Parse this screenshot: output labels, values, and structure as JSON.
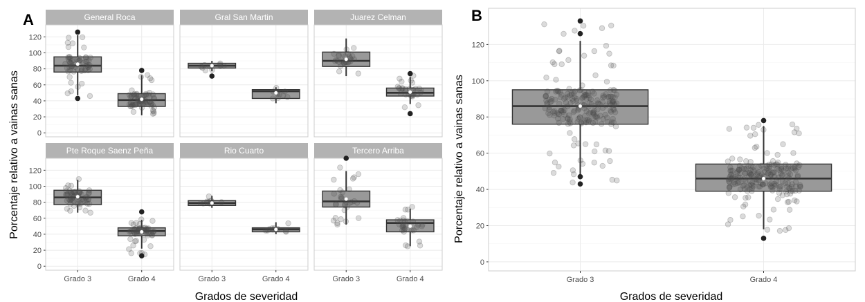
{
  "figure": {
    "colors": {
      "box": "#999999",
      "outline": "#333333",
      "strip": "#b3b3b3",
      "grid": "#ebebeb",
      "point": "#4d4d4d",
      "mean": "#ffffff"
    }
  },
  "chart_data": [
    {
      "type": "box",
      "panel_label": "A",
      "xlabel": "Grados de severidad",
      "ylabel": "Porcentaje relativo a vainas sanas",
      "categories": [
        "Grado 3",
        "Grado 4"
      ],
      "yticks": [
        0,
        20,
        40,
        60,
        80,
        100,
        120
      ],
      "ylim": [
        -5,
        135
      ],
      "grid": true,
      "facets": [
        {
          "name": "General Roca",
          "boxes": [
            {
              "category": "Grado 3",
              "q1": 76,
              "median": 84,
              "q3": 95,
              "whisker_low": 47,
              "whisker_high": 122,
              "mean": 86,
              "outliers": [
                43,
                126
              ],
              "jitter_min": 45,
              "jitter_max": 122,
              "n": 60
            },
            {
              "category": "Grado 4",
              "q1": 33,
              "median": 41,
              "q3": 49,
              "whisker_low": 22,
              "whisker_high": 72,
              "mean": 42,
              "outliers": [
                78
              ],
              "jitter_min": 20,
              "jitter_max": 75,
              "n": 70
            }
          ]
        },
        {
          "name": "Gral San Martin",
          "boxes": [
            {
              "category": "Grado 3",
              "q1": 81,
              "median": 84,
              "q3": 87,
              "whisker_low": 77,
              "whisker_high": 90,
              "mean": 84,
              "outliers": [
                71
              ],
              "jitter_min": 77,
              "jitter_max": 90,
              "n": 10
            },
            {
              "category": "Grado 4",
              "q1": 43,
              "median": 52,
              "q3": 54,
              "whisker_low": 37,
              "whisker_high": 57,
              "mean": 50,
              "outliers": [],
              "jitter_min": 37,
              "jitter_max": 57,
              "n": 10
            }
          ]
        },
        {
          "name": "Juarez Celman",
          "boxes": [
            {
              "category": "Grado 3",
              "q1": 83,
              "median": 90,
              "q3": 101,
              "whisker_low": 71,
              "whisker_high": 118,
              "mean": 92,
              "outliers": [],
              "jitter_min": 70,
              "jitter_max": 118,
              "n": 30
            },
            {
              "category": "Grado 4",
              "q1": 46,
              "median": 50,
              "q3": 56,
              "whisker_low": 36,
              "whisker_high": 70,
              "mean": 51,
              "outliers": [
                74,
                24
              ],
              "jitter_min": 30,
              "jitter_max": 72,
              "n": 30
            }
          ]
        },
        {
          "name": "Pte Roque Saenz Peña",
          "boxes": [
            {
              "category": "Grado 3",
              "q1": 77,
              "median": 86,
              "q3": 95,
              "whisker_low": 67,
              "whisker_high": 108,
              "mean": 87,
              "outliers": [],
              "jitter_min": 66,
              "jitter_max": 110,
              "n": 60
            },
            {
              "category": "Grado 4",
              "q1": 38,
              "median": 44,
              "q3": 48,
              "whisker_low": 22,
              "whisker_high": 58,
              "mean": 43,
              "outliers": [
                68,
                13
              ],
              "jitter_min": 14,
              "jitter_max": 60,
              "n": 60
            }
          ]
        },
        {
          "name": "Rio Cuarto",
          "boxes": [
            {
              "category": "Grado 3",
              "q1": 76,
              "median": 79,
              "q3": 82,
              "whisker_low": 73,
              "whisker_high": 88,
              "mean": 79,
              "outliers": [],
              "jitter_min": 73,
              "jitter_max": 89,
              "n": 10
            },
            {
              "category": "Grado 4",
              "q1": 43,
              "median": 46,
              "q3": 48,
              "whisker_low": 40,
              "whisker_high": 55,
              "mean": 46,
              "outliers": [],
              "jitter_min": 40,
              "jitter_max": 56,
              "n": 10
            }
          ]
        },
        {
          "name": "Tercero Arriba",
          "boxes": [
            {
              "category": "Grado 3",
              "q1": 74,
              "median": 81,
              "q3": 94,
              "whisker_low": 52,
              "whisker_high": 119,
              "mean": 84,
              "outliers": [
                135
              ],
              "jitter_min": 52,
              "jitter_max": 133,
              "n": 30
            },
            {
              "category": "Grado 4",
              "q1": 43,
              "median": 54,
              "q3": 58,
              "whisker_low": 25,
              "whisker_high": 72,
              "mean": 50,
              "outliers": [],
              "jitter_min": 24,
              "jitter_max": 75,
              "n": 30
            }
          ]
        }
      ]
    },
    {
      "type": "box",
      "panel_label": "B",
      "xlabel": "Grados de severidad",
      "ylabel": "Porcentaje relativo a vainas sanas",
      "categories": [
        "Grado 3",
        "Grado 4"
      ],
      "yticks": [
        0,
        20,
        40,
        60,
        80,
        100,
        120
      ],
      "ylim": [
        -5,
        140
      ],
      "grid": true,
      "boxes": [
        {
          "category": "Grado 3",
          "q1": 76,
          "median": 86,
          "q3": 95,
          "whisker_low": 47,
          "whisker_high": 122,
          "mean": 86,
          "outliers": [
            47,
            43,
            126,
            133
          ],
          "jitter_min": 42,
          "jitter_max": 133,
          "n": 220
        },
        {
          "category": "Grado 4",
          "q1": 39,
          "median": 46,
          "q3": 54,
          "whisker_low": 18,
          "whisker_high": 75,
          "mean": 46,
          "outliers": [
            78,
            13
          ],
          "jitter_min": 17,
          "jitter_max": 78,
          "n": 220
        }
      ]
    }
  ]
}
